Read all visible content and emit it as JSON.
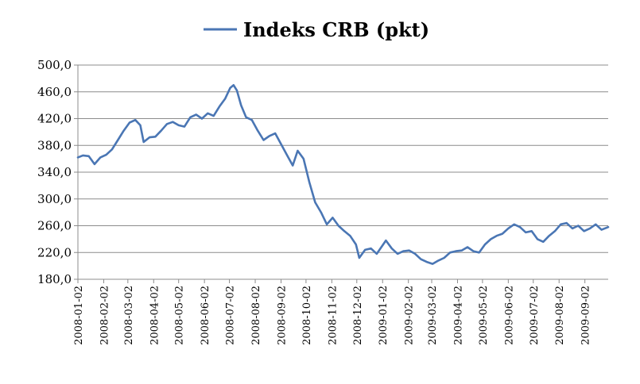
{
  "chart_data": {
    "type": "line",
    "legend": {
      "position": "top-center"
    },
    "grid": {
      "horizontal": true,
      "vertical": false
    },
    "colors": {
      "series": "#4a76b4",
      "grid": "#8c8c8c",
      "axis": "#8c8c8c"
    },
    "ylim": [
      180,
      500
    ],
    "y_ticks": [
      "180,0",
      "220,0",
      "260,0",
      "300,0",
      "340,0",
      "380,0",
      "420,0",
      "460,0",
      "500,0"
    ],
    "x_ticks": [
      "2008-01-02",
      "2008-02-02",
      "2008-03-02",
      "2008-04-02",
      "2008-05-02",
      "2008-06-02",
      "2008-07-02",
      "2008-08-02",
      "2008-09-02",
      "2008-10-02",
      "2008-11-02",
      "2008-12-02",
      "2009-01-02",
      "2009-02-02",
      "2009-03-02",
      "2009-04-02",
      "2009-05-02",
      "2009-06-02",
      "2009-07-02",
      "2009-08-02",
      "2009-09-02"
    ],
    "x_range": [
      "2008-01-02",
      "2009-09-30"
    ],
    "series": [
      {
        "name": "Indeks CRB (pkt)",
        "points": [
          [
            "2008-01-02",
            362
          ],
          [
            "2008-01-08",
            365
          ],
          [
            "2008-01-15",
            364
          ],
          [
            "2008-01-22",
            352
          ],
          [
            "2008-01-29",
            362
          ],
          [
            "2008-02-05",
            366
          ],
          [
            "2008-02-12",
            374
          ],
          [
            "2008-02-19",
            388
          ],
          [
            "2008-02-26",
            402
          ],
          [
            "2008-03-04",
            414
          ],
          [
            "2008-03-11",
            418
          ],
          [
            "2008-03-17",
            410
          ],
          [
            "2008-03-21",
            385
          ],
          [
            "2008-03-28",
            392
          ],
          [
            "2008-04-04",
            393
          ],
          [
            "2008-04-11",
            402
          ],
          [
            "2008-04-18",
            412
          ],
          [
            "2008-04-25",
            415
          ],
          [
            "2008-05-02",
            410
          ],
          [
            "2008-05-09",
            408
          ],
          [
            "2008-05-16",
            422
          ],
          [
            "2008-05-23",
            426
          ],
          [
            "2008-05-30",
            420
          ],
          [
            "2008-06-06",
            428
          ],
          [
            "2008-06-13",
            424
          ],
          [
            "2008-06-20",
            438
          ],
          [
            "2008-06-27",
            450
          ],
          [
            "2008-07-03",
            466
          ],
          [
            "2008-07-07",
            470
          ],
          [
            "2008-07-11",
            462
          ],
          [
            "2008-07-16",
            440
          ],
          [
            "2008-07-22",
            422
          ],
          [
            "2008-07-29",
            418
          ],
          [
            "2008-08-05",
            402
          ],
          [
            "2008-08-12",
            388
          ],
          [
            "2008-08-19",
            394
          ],
          [
            "2008-08-26",
            398
          ],
          [
            "2008-09-02",
            382
          ],
          [
            "2008-09-09",
            366
          ],
          [
            "2008-09-16",
            350
          ],
          [
            "2008-09-22",
            372
          ],
          [
            "2008-09-29",
            360
          ],
          [
            "2008-10-06",
            325
          ],
          [
            "2008-10-13",
            295
          ],
          [
            "2008-10-20",
            280
          ],
          [
            "2008-10-27",
            262
          ],
          [
            "2008-11-03",
            272
          ],
          [
            "2008-11-10",
            260
          ],
          [
            "2008-11-17",
            252
          ],
          [
            "2008-11-24",
            245
          ],
          [
            "2008-12-01",
            232
          ],
          [
            "2008-12-05",
            212
          ],
          [
            "2008-12-12",
            224
          ],
          [
            "2008-12-19",
            226
          ],
          [
            "2008-12-26",
            218
          ],
          [
            "2009-01-06",
            238
          ],
          [
            "2009-01-13",
            226
          ],
          [
            "2009-01-20",
            218
          ],
          [
            "2009-01-27",
            222
          ],
          [
            "2009-02-03",
            223
          ],
          [
            "2009-02-10",
            218
          ],
          [
            "2009-02-17",
            210
          ],
          [
            "2009-02-24",
            206
          ],
          [
            "2009-03-03",
            203
          ],
          [
            "2009-03-10",
            208
          ],
          [
            "2009-03-17",
            212
          ],
          [
            "2009-03-24",
            220
          ],
          [
            "2009-03-31",
            222
          ],
          [
            "2009-04-07",
            223
          ],
          [
            "2009-04-14",
            228
          ],
          [
            "2009-04-21",
            222
          ],
          [
            "2009-04-28",
            220
          ],
          [
            "2009-05-05",
            232
          ],
          [
            "2009-05-12",
            240
          ],
          [
            "2009-05-19",
            245
          ],
          [
            "2009-05-26",
            248
          ],
          [
            "2009-06-02",
            256
          ],
          [
            "2009-06-09",
            262
          ],
          [
            "2009-06-16",
            258
          ],
          [
            "2009-06-23",
            250
          ],
          [
            "2009-06-30",
            252
          ],
          [
            "2009-07-07",
            240
          ],
          [
            "2009-07-14",
            236
          ],
          [
            "2009-07-21",
            245
          ],
          [
            "2009-07-28",
            252
          ],
          [
            "2009-08-04",
            262
          ],
          [
            "2009-08-11",
            264
          ],
          [
            "2009-08-18",
            256
          ],
          [
            "2009-08-25",
            260
          ],
          [
            "2009-09-01",
            252
          ],
          [
            "2009-09-08",
            256
          ],
          [
            "2009-09-15",
            262
          ],
          [
            "2009-09-22",
            254
          ],
          [
            "2009-09-30",
            258
          ]
        ]
      }
    ]
  }
}
